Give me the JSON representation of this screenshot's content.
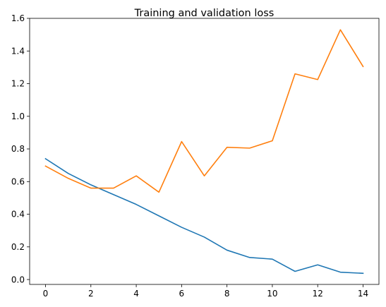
{
  "chart_data": {
    "type": "line",
    "title": "Training and validation loss",
    "xlabel": "",
    "ylabel": "",
    "x": [
      0,
      1,
      2,
      3,
      4,
      5,
      6,
      7,
      8,
      9,
      10,
      11,
      12,
      13,
      14
    ],
    "xlim": [
      -0.7,
      14.7
    ],
    "ylim": [
      -0.03,
      1.6
    ],
    "x_ticks": [
      0,
      2,
      4,
      6,
      8,
      10,
      12,
      14
    ],
    "y_ticks": [
      0.0,
      0.2,
      0.4,
      0.6,
      0.8,
      1.0,
      1.2,
      1.4,
      1.6
    ],
    "grid": false,
    "series": [
      {
        "color": "#1f77b4",
        "values": [
          0.74,
          0.65,
          0.58,
          0.52,
          0.46,
          0.39,
          0.32,
          0.26,
          0.18,
          0.135,
          0.125,
          0.05,
          0.09,
          0.045,
          0.038
        ]
      },
      {
        "color": "#ff7f0e",
        "values": [
          0.695,
          0.62,
          0.56,
          0.56,
          0.635,
          0.535,
          0.845,
          0.635,
          0.81,
          0.805,
          0.85,
          1.26,
          1.225,
          1.53,
          1.305
        ]
      }
    ]
  }
}
